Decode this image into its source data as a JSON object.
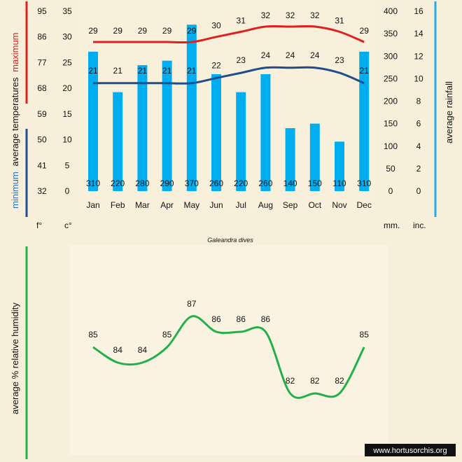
{
  "species": "Galeandra dives",
  "watermark": "www.hortusorchis.org",
  "colors": {
    "background": "#f7efd9",
    "panel": "#f8f0db",
    "rain_bar": "#00aeef",
    "max_line": "#e02020",
    "min_line": "#1f4e8c",
    "humidity_line": "#22b04a",
    "rain_axis_bar": "#29abe2"
  },
  "labels": {
    "maximum": "maximum",
    "minimum": "minimum",
    "average_temperatures": "average  temperatures",
    "average_rainfall": "average rainfall",
    "humidity": "average %  relative humidity",
    "unit_f": "f°",
    "unit_c": "c°",
    "unit_mm": "mm.",
    "unit_inc": "inc."
  },
  "chart_data": [
    {
      "type": "bar+line",
      "title": "Galeandra dives",
      "categories": [
        "Jan",
        "Feb",
        "Mar",
        "Apr",
        "May",
        "Jun",
        "Jul",
        "Aug",
        "Sep",
        "Oct",
        "Nov",
        "Dec"
      ],
      "rainfall_mm": [
        310,
        220,
        280,
        290,
        370,
        260,
        220,
        260,
        140,
        150,
        110,
        310
      ],
      "max_temp_c": [
        29,
        29,
        29,
        29,
        29,
        30,
        31,
        32,
        32,
        32,
        31,
        29
      ],
      "min_temp_c": [
        21,
        21,
        21,
        21,
        21,
        22,
        23,
        24,
        24,
        24,
        23,
        21
      ],
      "celsius_axis": {
        "min": 0,
        "max": 35,
        "ticks": [
          0,
          5,
          10,
          15,
          20,
          25,
          30,
          35
        ]
      },
      "fahrenheit_axis": {
        "ticks": [
          32,
          41,
          50,
          59,
          68,
          77,
          86,
          95
        ]
      },
      "mm_axis": {
        "min": 0,
        "max": 400,
        "ticks": [
          0,
          50,
          100,
          150,
          200,
          250,
          300,
          350,
          400
        ]
      },
      "inch_axis": {
        "ticks": [
          0,
          2,
          4,
          6,
          8,
          10,
          12,
          14,
          16
        ]
      }
    },
    {
      "type": "line",
      "title": "average % relative humidity",
      "categories": [
        "Jan",
        "Feb",
        "Mar",
        "Apr",
        "May",
        "Jun",
        "Jul",
        "Aug",
        "Sep",
        "Oct",
        "Nov",
        "Dec"
      ],
      "values": [
        85,
        84,
        84,
        85,
        87,
        86,
        86,
        86,
        82,
        82,
        82,
        85
      ]
    }
  ]
}
